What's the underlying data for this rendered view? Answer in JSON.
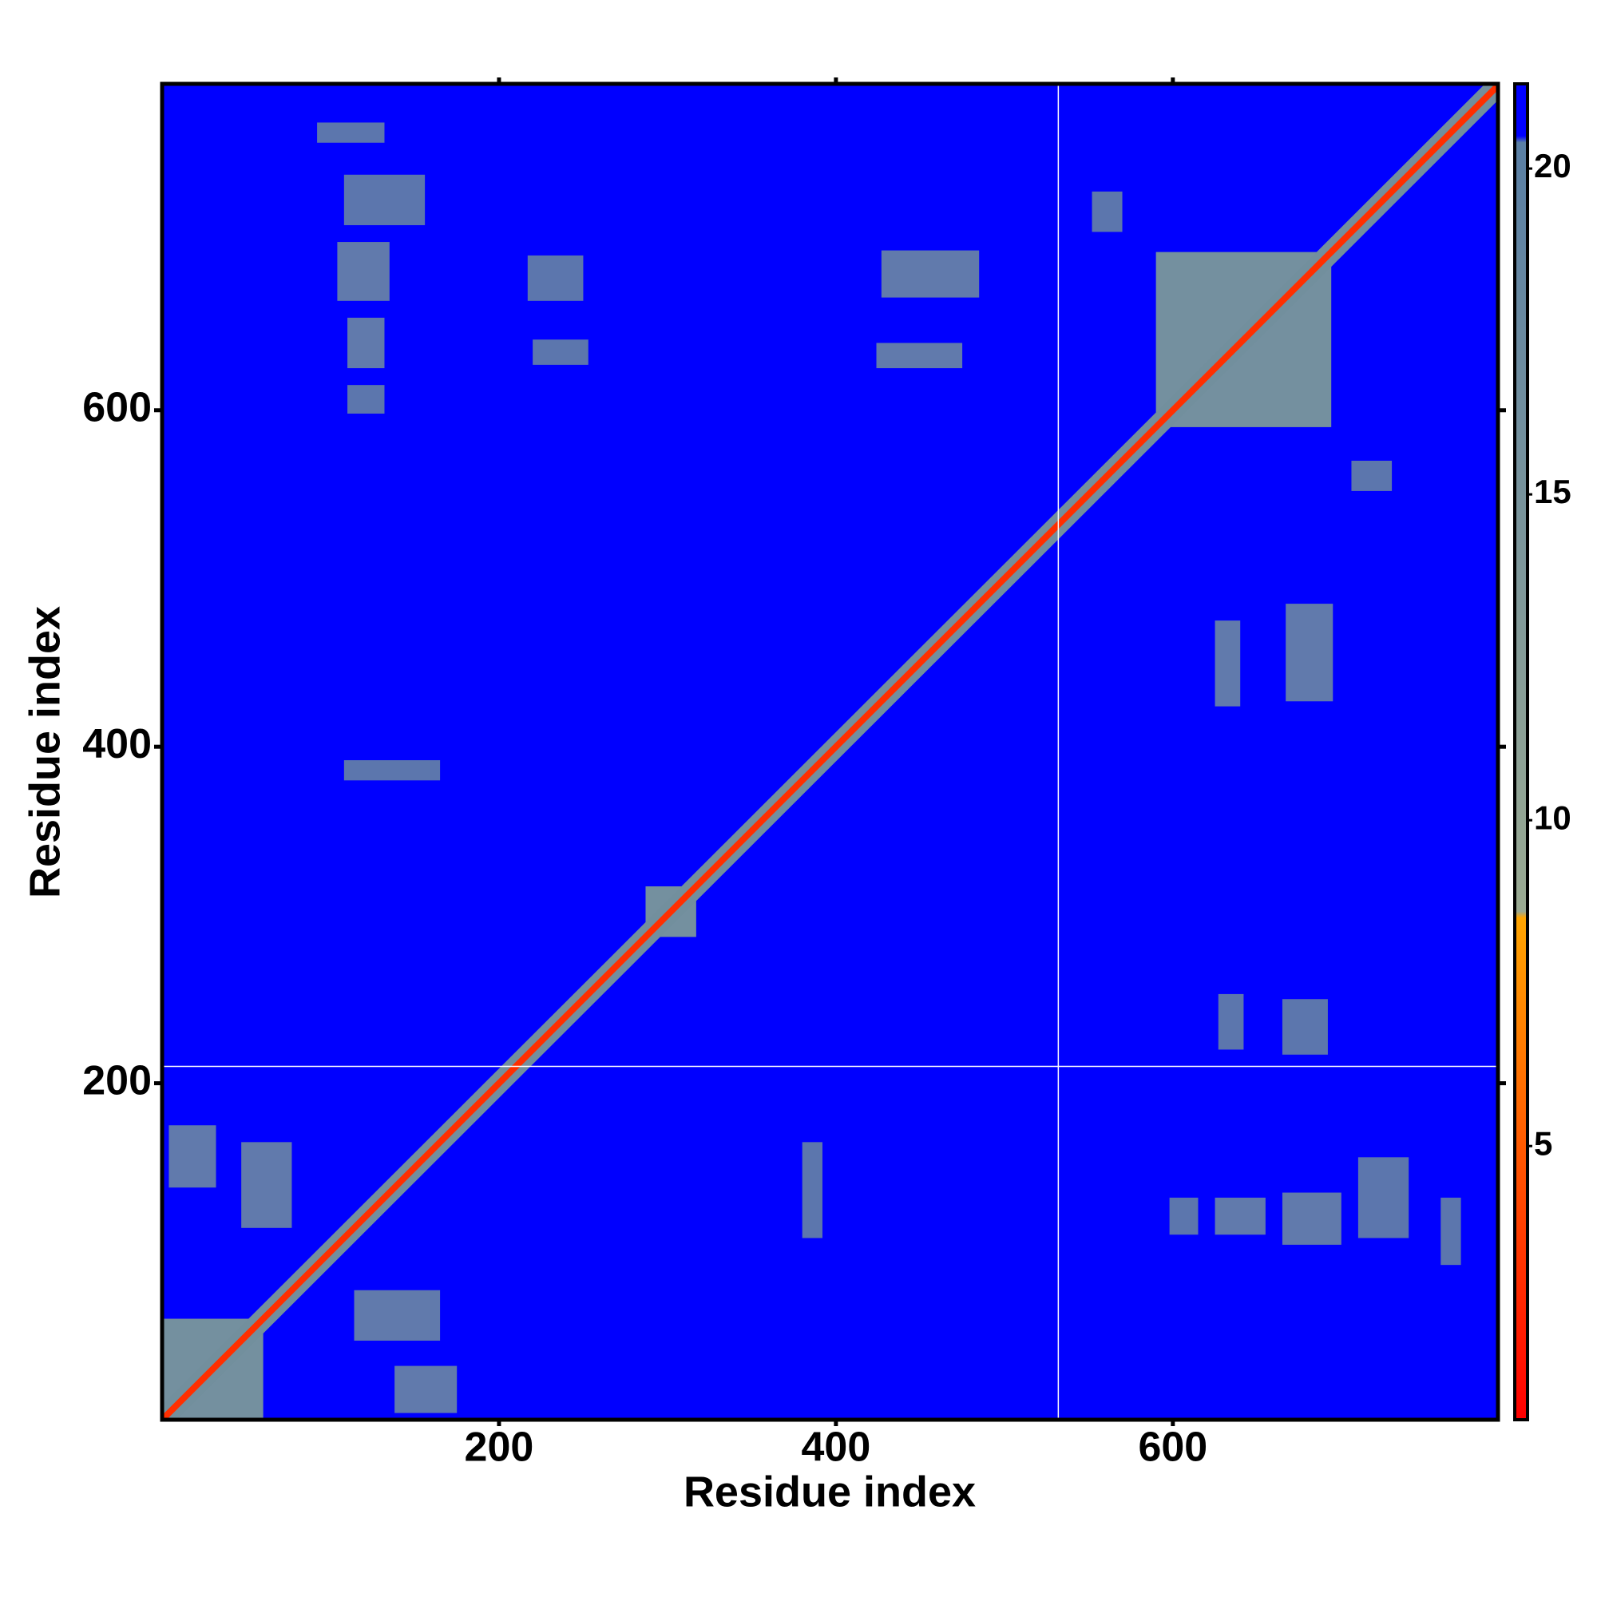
{
  "chart_data": {
    "type": "heatmap",
    "x_label": "Residue index",
    "y_label": "Residue index",
    "xlim": [
      0,
      793
    ],
    "ylim": [
      0,
      794
    ],
    "xticks": [
      200,
      400,
      600
    ],
    "yticks": [
      200,
      400,
      600
    ],
    "background": 21,
    "diagonal": {
      "value": 3,
      "halo_value": 16
    },
    "patches": [
      {
        "x": [
          0,
          60
        ],
        "y": [
          0,
          60
        ],
        "value": 15
      },
      {
        "x": [
          4,
          32
        ],
        "y": [
          138,
          175
        ],
        "value": 16
      },
      {
        "x": [
          47,
          77
        ],
        "y": [
          114,
          165
        ],
        "value": 16
      },
      {
        "x": [
          92,
          132
        ],
        "y": [
          759,
          771
        ],
        "value": 17
      },
      {
        "x": [
          108,
          156
        ],
        "y": [
          710,
          740
        ],
        "value": 17
      },
      {
        "x": [
          104,
          135
        ],
        "y": [
          665,
          700
        ],
        "value": 16
      },
      {
        "x": [
          110,
          132
        ],
        "y": [
          625,
          655
        ],
        "value": 16
      },
      {
        "x": [
          110,
          132
        ],
        "y": [
          598,
          615
        ],
        "value": 17
      },
      {
        "x": [
          217,
          250
        ],
        "y": [
          665,
          692
        ],
        "value": 17
      },
      {
        "x": [
          220,
          253
        ],
        "y": [
          627,
          642
        ],
        "value": 17
      },
      {
        "x": [
          427,
          485
        ],
        "y": [
          667,
          695
        ],
        "value": 16
      },
      {
        "x": [
          424,
          475
        ],
        "y": [
          625,
          640
        ],
        "value": 16
      },
      {
        "x": [
          108,
          165
        ],
        "y": [
          380,
          392
        ],
        "value": 17
      },
      {
        "x": [
          552,
          570
        ],
        "y": [
          706,
          730
        ],
        "value": 17
      },
      {
        "x": [
          287,
          317
        ],
        "y": [
          287,
          317
        ],
        "value": 15
      },
      {
        "x": [
          590,
          694
        ],
        "y": [
          590,
          694
        ],
        "value": 15
      }
    ],
    "boundaries": {
      "x": [
        532
      ],
      "y": [
        210
      ]
    },
    "colorbar": {
      "lim": [
        0.8,
        21.3
      ],
      "ticks": [
        5,
        10,
        15,
        20
      ],
      "stops": [
        {
          "value": 0.8,
          "color": "#ff0000"
        },
        {
          "value": 8.5,
          "color": "#ffa500"
        },
        {
          "value": 8.6,
          "color": "#9aaa92"
        },
        {
          "value": 20.4,
          "color": "#5a7fa4"
        },
        {
          "value": 20.5,
          "color": "#0000ff"
        },
        {
          "value": 21.3,
          "color": "#0000ff"
        }
      ]
    }
  }
}
